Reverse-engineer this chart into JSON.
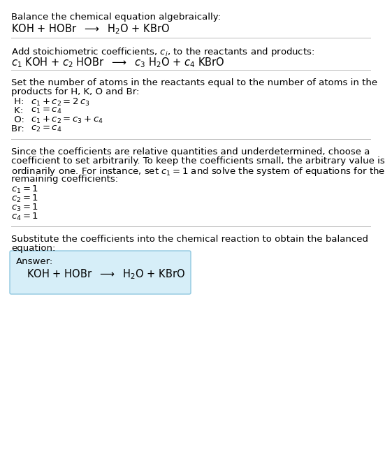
{
  "title_line1": "Balance the chemical equation algebraically:",
  "section2_intro": "Add stoichiometric coefficients, $c_i$, to the reactants and products:",
  "section3_intro1": "Set the number of atoms in the reactants equal to the number of atoms in the",
  "section3_intro2": "products for H, K, O and Br:",
  "equations": [
    {
      "label": " H:  ",
      "eq": "$c_1 + c_2 = 2\\,c_3$"
    },
    {
      "label": " K:  ",
      "eq": "$c_1 = c_4$"
    },
    {
      "label": " O:  ",
      "eq": "$c_1 + c_2 = c_3 + c_4$"
    },
    {
      "label": "Br:  ",
      "eq": "$c_2 = c_4$"
    }
  ],
  "section4_text1": "Since the coefficients are relative quantities and underdetermined, choose a",
  "section4_text2": "coefficient to set arbitrarily. To keep the coefficients small, the arbitrary value is",
  "section4_text3": "ordinarily one. For instance, set $c_1 = 1$ and solve the system of equations for the",
  "section4_text4": "remaining coefficients:",
  "coeffs": [
    "$c_1 = 1$",
    "$c_2 = 1$",
    "$c_3 = 1$",
    "$c_4 = 1$"
  ],
  "section5_text1": "Substitute the coefficients into the chemical reaction to obtain the balanced",
  "section5_text2": "equation:",
  "answer_label": "Answer:",
  "answer_box_color": "#d6eef8",
  "answer_box_border": "#90c8e0",
  "bg_color": "#ffffff",
  "text_color": "#000000",
  "separator_color": "#bbbbbb",
  "font_size": 9.5,
  "eq_font_size": 10.5
}
